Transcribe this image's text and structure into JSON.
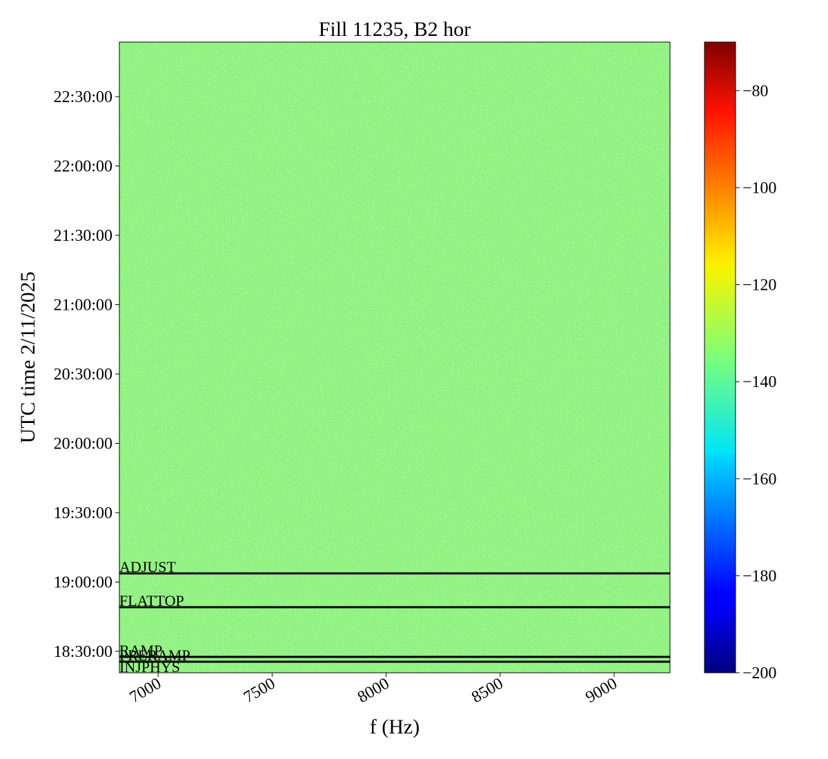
{
  "chart_data": {
    "type": "spectrogram",
    "title": "Fill 11235, B2 hor",
    "x_label": "f (Hz)",
    "y_label": "UTC time 2/11/2025",
    "xlim": [
      6830,
      9245
    ],
    "xticks": [
      7000,
      7500,
      8000,
      8500,
      9000
    ],
    "ylim": [
      "18:20:45",
      "22:53:35"
    ],
    "yticks": [
      "18:30:00",
      "19:00:00",
      "19:30:00",
      "20:00:00",
      "20:30:00",
      "21:00:00",
      "21:30:00",
      "22:00:00",
      "22:30:00"
    ],
    "colormap": "jet",
    "clim": [
      -200,
      -70
    ],
    "cticks": [
      {
        "value": -200,
        "label": "−200"
      },
      {
        "value": -180,
        "label": "−180"
      },
      {
        "value": -160,
        "label": "−160"
      },
      {
        "value": -140,
        "label": "−140"
      },
      {
        "value": -120,
        "label": "−120"
      },
      {
        "value": -100,
        "label": "−100"
      },
      {
        "value": -80,
        "label": "−80"
      }
    ],
    "markers": [
      {
        "label": "ADJUST",
        "time": "19:03:44"
      },
      {
        "label": "FLATTOP",
        "time": "18:49:06"
      },
      {
        "label": "RAMP",
        "time": "18:27:37"
      },
      {
        "label": "PRERAMP",
        "time": "18:25:32"
      },
      {
        "label": "INJPHYS",
        "time": "18:20:27"
      }
    ]
  }
}
